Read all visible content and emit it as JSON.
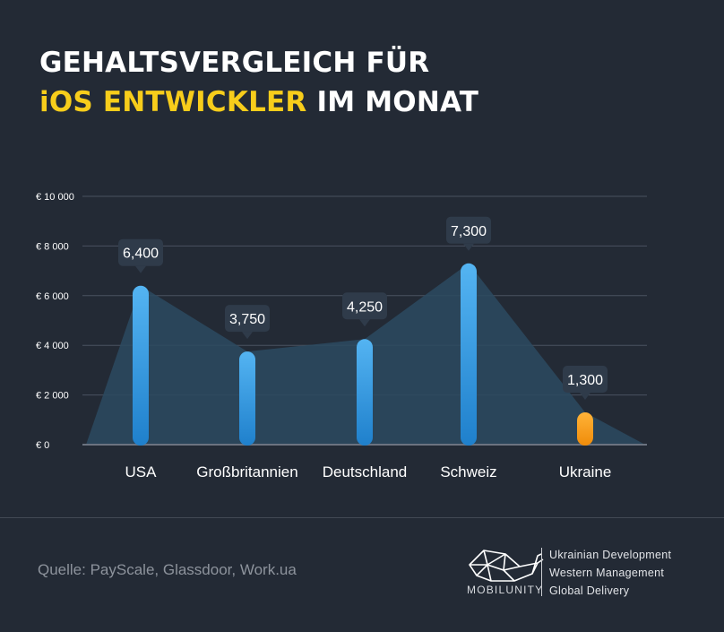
{
  "title": {
    "line1": "GEHALTSVERGLEICH FÜR",
    "highlight": "iOS ENTWICKLER",
    "line2_rest": " IM MONAT"
  },
  "colors": {
    "background": "#232a35",
    "highlight": "#f7cd1b",
    "bar_blue": "#3a9be0",
    "bar_orange": "#f59a17",
    "area": "#2c4a60",
    "grid": "#4a5260"
  },
  "chart_data": {
    "type": "bar",
    "categories": [
      "USA",
      "Großbritannien",
      "Deutschland",
      "Schweiz",
      "Ukraine"
    ],
    "values": [
      6400,
      3750,
      4250,
      7300,
      1300
    ],
    "value_labels": [
      "6,400",
      "3,750",
      "4,250",
      "7,300",
      "1,300"
    ],
    "ylim": [
      0,
      10000
    ],
    "yticks": [
      0,
      2000,
      4000,
      6000,
      8000,
      10000
    ],
    "ytick_labels": [
      "€ 0",
      "€ 2 000",
      "€ 4 000",
      "€ 6 000",
      "€ 8 000",
      "€ 10 000"
    ],
    "highlighted_category": "Ukraine",
    "grid": true,
    "area_overlay": true
  },
  "footer": {
    "source": "Quelle: PayScale, Glassdoor, Work.ua",
    "brand": "MOBILUNITY",
    "brand_logo_icon": "whale-logo-icon",
    "taglines": [
      "Ukrainian Development",
      "Western Management",
      "Global Delivery"
    ]
  }
}
